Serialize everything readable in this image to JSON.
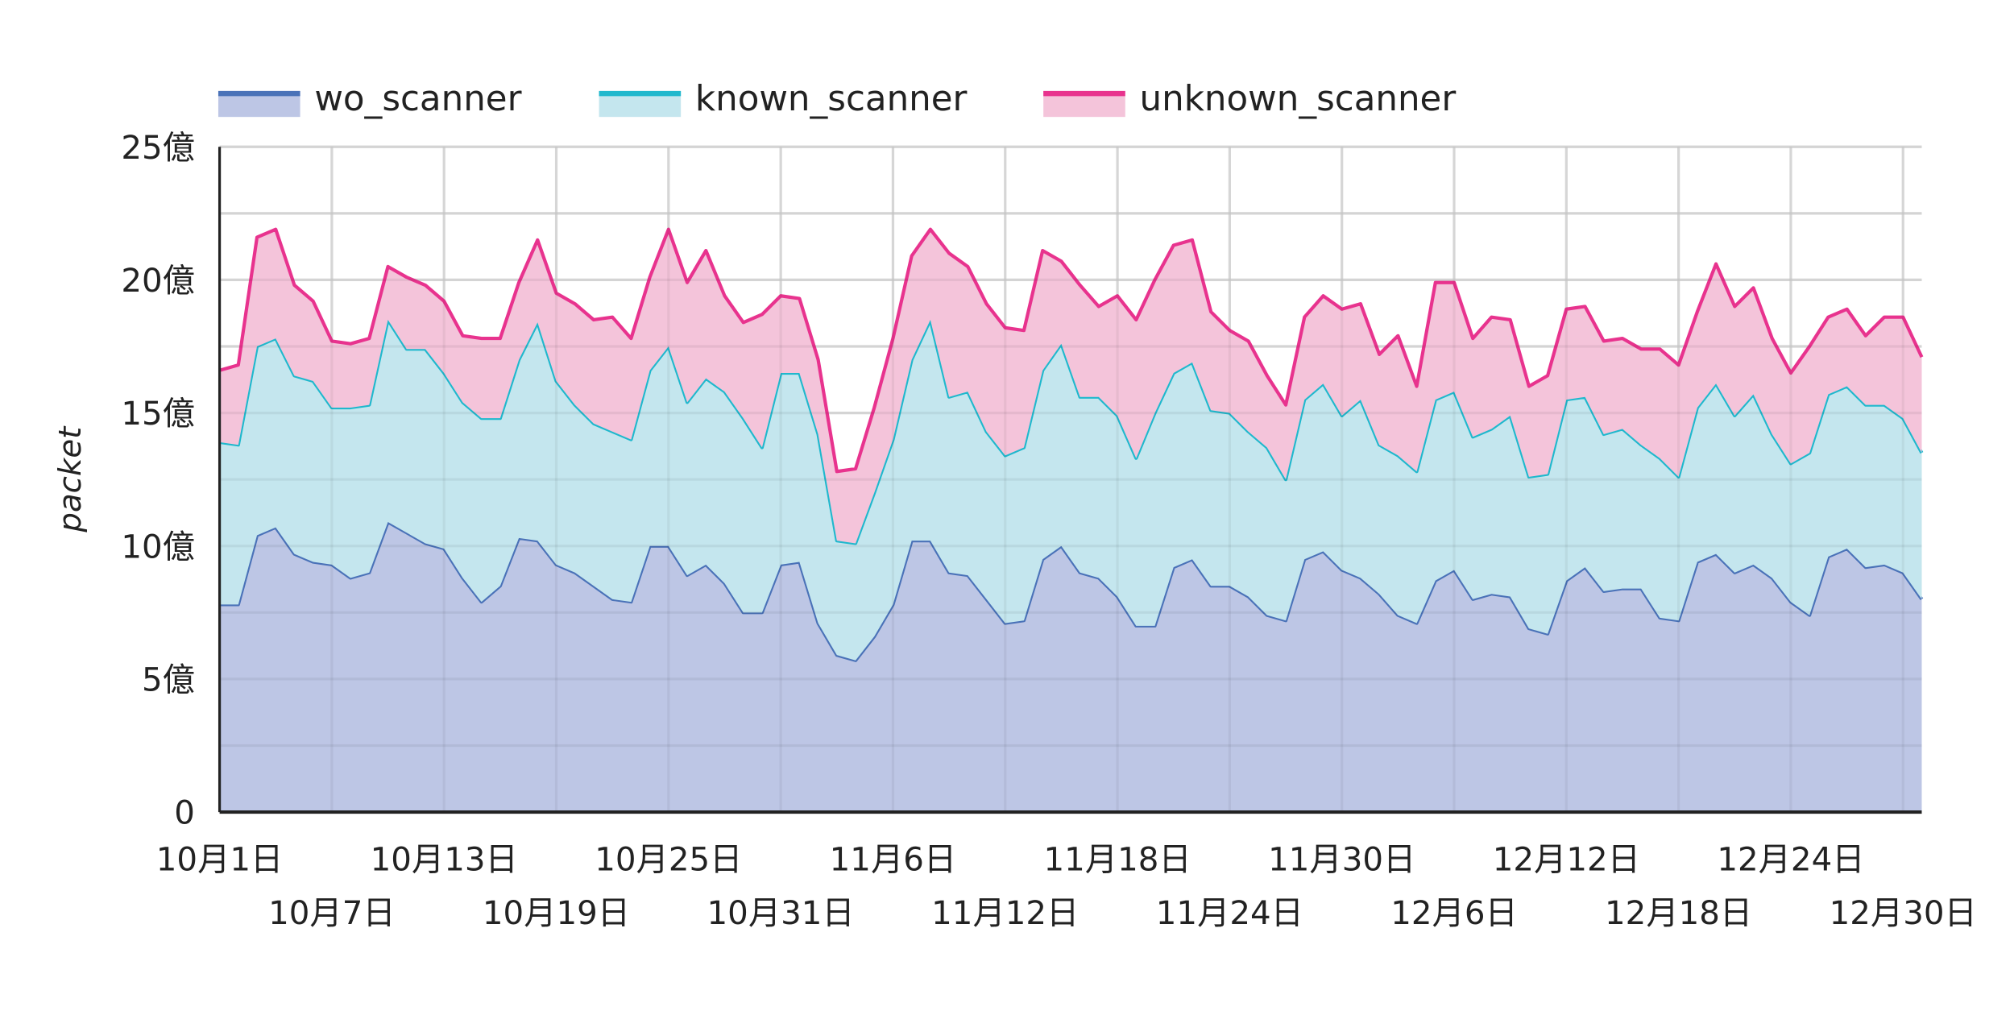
{
  "chart_data": {
    "type": "area",
    "stacked": true,
    "title": "",
    "xlabel": "",
    "ylabel": "packet",
    "ylim": [
      0,
      2500000000
    ],
    "yticks": [
      {
        "value": 0,
        "label": "0"
      },
      {
        "value": 500000000,
        "label": "5億"
      },
      {
        "value": 1000000000,
        "label": "10億"
      },
      {
        "value": 1500000000,
        "label": "15億"
      },
      {
        "value": 2000000000,
        "label": "20億"
      },
      {
        "value": 2500000000,
        "label": "25億"
      }
    ],
    "xtick_labels_row1": [
      "10月1日",
      "10月13日",
      "10月25日",
      "11月6日",
      "11月18日",
      "11月30日",
      "12月12日",
      "12月24日"
    ],
    "xtick_labels_row2": [
      "10月7日",
      "10月19日",
      "10月31日",
      "11月12日",
      "11月24日",
      "12月6日",
      "12月18日",
      "12月30日"
    ],
    "xtick_day_index_row1": [
      0,
      12,
      24,
      36,
      48,
      60,
      72,
      84
    ],
    "xtick_day_index_row2": [
      6,
      18,
      30,
      42,
      54,
      66,
      78,
      90
    ],
    "legend_position": "top",
    "grid": true,
    "unit_note": "values in 億 (100 million) packets; series values are per-series (not cumulative)",
    "x_start": "10月1日",
    "x_end": "12月31日",
    "series": [
      {
        "name": "wo_scanner",
        "line_color": "#4a72b8",
        "fill_color": "#bdc6e5",
        "values": [
          7.8,
          7.8,
          10.4,
          10.7,
          9.7,
          9.4,
          9.3,
          8.8,
          9.0,
          10.9,
          10.5,
          10.1,
          9.9,
          8.8,
          7.9,
          8.5,
          10.3,
          10.2,
          9.3,
          9.0,
          8.5,
          8.0,
          7.9,
          10.0,
          10.0,
          8.9,
          9.3,
          8.6,
          7.5,
          7.5,
          9.3,
          9.4,
          7.1,
          5.9,
          5.7,
          6.6,
          7.8,
          10.2,
          10.2,
          9.0,
          8.9,
          8.0,
          7.1,
          7.2,
          9.5,
          10.0,
          9.0,
          8.8,
          8.1,
          7.0,
          7.0,
          9.2,
          9.5,
          8.5,
          8.5,
          8.1,
          7.4,
          7.2,
          9.5,
          9.8,
          9.1,
          8.8,
          8.2,
          7.4,
          7.1,
          8.7,
          9.1,
          8.0,
          8.2,
          8.1,
          6.9,
          6.7,
          8.7,
          9.2,
          8.3,
          8.4,
          8.4,
          7.3,
          7.2,
          9.4,
          9.7,
          9.0,
          9.3,
          8.8,
          7.9,
          7.4,
          9.6,
          9.9,
          9.2,
          9.3,
          9.0,
          8.0
        ]
      },
      {
        "name": "known_scanner",
        "line_color": "#1fb8cd",
        "fill_color": "#c4e6ee",
        "values": [
          6.1,
          6.0,
          7.1,
          7.1,
          6.7,
          6.8,
          5.9,
          6.4,
          6.3,
          7.6,
          6.9,
          7.3,
          6.6,
          6.6,
          6.9,
          6.3,
          6.7,
          8.2,
          6.9,
          6.3,
          6.1,
          6.3,
          6.1,
          6.6,
          7.5,
          6.5,
          7.0,
          7.2,
          7.3,
          6.2,
          7.2,
          7.1,
          7.1,
          4.3,
          4.4,
          5.4,
          6.2,
          6.8,
          8.3,
          6.6,
          6.9,
          6.3,
          6.3,
          6.5,
          7.1,
          7.6,
          6.6,
          6.8,
          6.8,
          6.3,
          8.0,
          7.3,
          7.4,
          6.6,
          6.5,
          6.2,
          6.3,
          5.3,
          6.0,
          6.3,
          5.8,
          6.7,
          5.6,
          6.0,
          5.7,
          6.8,
          6.7,
          6.1,
          6.2,
          6.8,
          5.7,
          6.0,
          6.8,
          6.4,
          5.9,
          6.0,
          5.4,
          6.0,
          5.4,
          5.8,
          6.4,
          5.9,
          6.4,
          5.4,
          5.2,
          6.1,
          6.1,
          6.1,
          6.1,
          6.0,
          5.8,
          5.5
        ]
      },
      {
        "name": "unknown_scanner",
        "line_color": "#e8338e",
        "fill_color": "#f4c4da",
        "values": [
          2.7,
          3.0,
          4.1,
          4.1,
          3.4,
          3.0,
          2.5,
          2.4,
          2.5,
          2.0,
          2.7,
          2.4,
          2.7,
          2.5,
          3.0,
          3.0,
          2.9,
          3.1,
          3.3,
          3.8,
          3.9,
          4.3,
          3.8,
          3.5,
          4.4,
          4.5,
          4.8,
          3.6,
          3.6,
          5.0,
          2.9,
          2.8,
          2.8,
          2.6,
          2.8,
          3.2,
          3.8,
          3.9,
          3.4,
          5.4,
          4.7,
          4.8,
          4.8,
          4.4,
          4.5,
          3.1,
          4.2,
          3.4,
          4.5,
          5.2,
          5.0,
          4.8,
          4.6,
          3.7,
          3.1,
          3.4,
          2.7,
          2.8,
          3.1,
          3.3,
          4.0,
          3.6,
          3.4,
          4.5,
          3.2,
          4.4,
          4.1,
          3.7,
          4.2,
          3.6,
          3.4,
          3.7,
          3.4,
          3.4,
          3.5,
          3.4,
          3.6,
          4.1,
          4.2,
          3.6,
          4.5,
          4.1,
          4.0,
          3.6,
          3.4,
          4.0,
          2.9,
          2.9,
          2.6,
          3.3,
          3.8,
          3.6
        ]
      }
    ]
  },
  "legend": {
    "items": [
      {
        "label": "wo_scanner",
        "line": "#4a72b8",
        "fill": "#bdc6e5"
      },
      {
        "label": "known_scanner",
        "line": "#1fb8cd",
        "fill": "#c4e6ee"
      },
      {
        "label": "unknown_scanner",
        "line": "#e8338e",
        "fill": "#f4c4da"
      }
    ]
  },
  "axes": {
    "ylabel": "packet"
  }
}
